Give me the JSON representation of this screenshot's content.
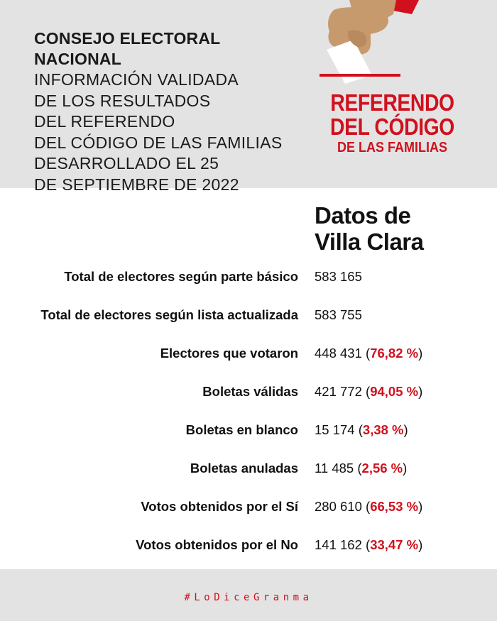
{
  "header": {
    "org": "CONSEJO ELECTORAL NACIONAL",
    "lines": [
      "INFORMACIÓN VALIDADA",
      "DE LOS RESULTADOS",
      "DEL REFERENDO",
      "DEL CÓDIGO DE LAS FAMILIAS",
      "DESARROLLADO EL 25",
      "DE SEPTIEMBRE DE 2022"
    ]
  },
  "logo": {
    "line1": "REFERENDO",
    "line2": "DEL CÓDIGO",
    "line3": "DE LAS FAMILIAS",
    "colors": {
      "red": "#d0111d",
      "skin": "#c69a6d",
      "ballot": "#ffffff"
    },
    "icon": "hand-casting-ballot-icon"
  },
  "data_title": {
    "line1": "Datos de",
    "line2": "Villa Clara"
  },
  "rows": [
    {
      "label": "Total de electores según parte básico",
      "value": "583 165",
      "pct": ""
    },
    {
      "label": "Total de electores según lista actualizada",
      "value": "583 755",
      "pct": ""
    },
    {
      "label": "Electores que votaron",
      "value": "448 431",
      "pct": "76,82 %"
    },
    {
      "label": "Boletas válidas",
      "value": "421 772",
      "pct": "94,05 %"
    },
    {
      "label": "Boletas en blanco",
      "value": "15 174",
      "pct": "3,38 %"
    },
    {
      "label": "Boletas anuladas",
      "value": "11 485",
      "pct": "2,56 %"
    },
    {
      "label": "Votos obtenidos por el Sí",
      "value": "280 610",
      "pct": "66,53 %"
    },
    {
      "label": "Votos obtenidos por el No",
      "value": "141 162",
      "pct": "33,47 %"
    }
  ],
  "footer": {
    "hashtag": "#LoDiceGranma"
  },
  "colors": {
    "accent": "#d0111d",
    "band": "#e4e3e4"
  }
}
